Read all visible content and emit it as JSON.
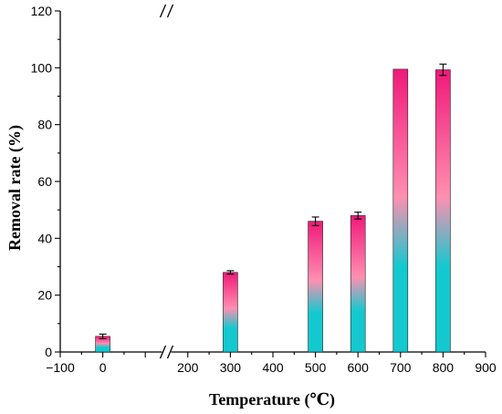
{
  "chart_data": {
    "type": "bar",
    "xlabel": "Temperature (℃)",
    "ylabel": "Removal rate (%)",
    "xlim": [
      -100,
      900
    ],
    "ylim": [
      0,
      120
    ],
    "xticks": [
      -100,
      0,
      100,
      200,
      300,
      400,
      500,
      600,
      700,
      800,
      900
    ],
    "xtick_labels": [
      "−100",
      "0",
      "",
      "200",
      "300",
      "400",
      "500",
      "600",
      "700",
      "800",
      "900"
    ],
    "yticks": [
      0,
      20,
      40,
      60,
      80,
      100,
      120
    ],
    "axis_break_near_x": 150,
    "categories": [
      "0",
      "300",
      "500",
      "600",
      "700",
      "800"
    ],
    "x": [
      0,
      300,
      500,
      600,
      700,
      800
    ],
    "values": [
      5.5,
      28,
      46,
      48,
      99.5,
      99.3
    ],
    "errors": [
      0.8,
      0.6,
      1.5,
      1.2,
      0,
      2.0
    ],
    "gradient": {
      "bottom": "#13c9cf",
      "middle": "#ff8fb0",
      "top": "#f0197a"
    },
    "grid": false
  }
}
